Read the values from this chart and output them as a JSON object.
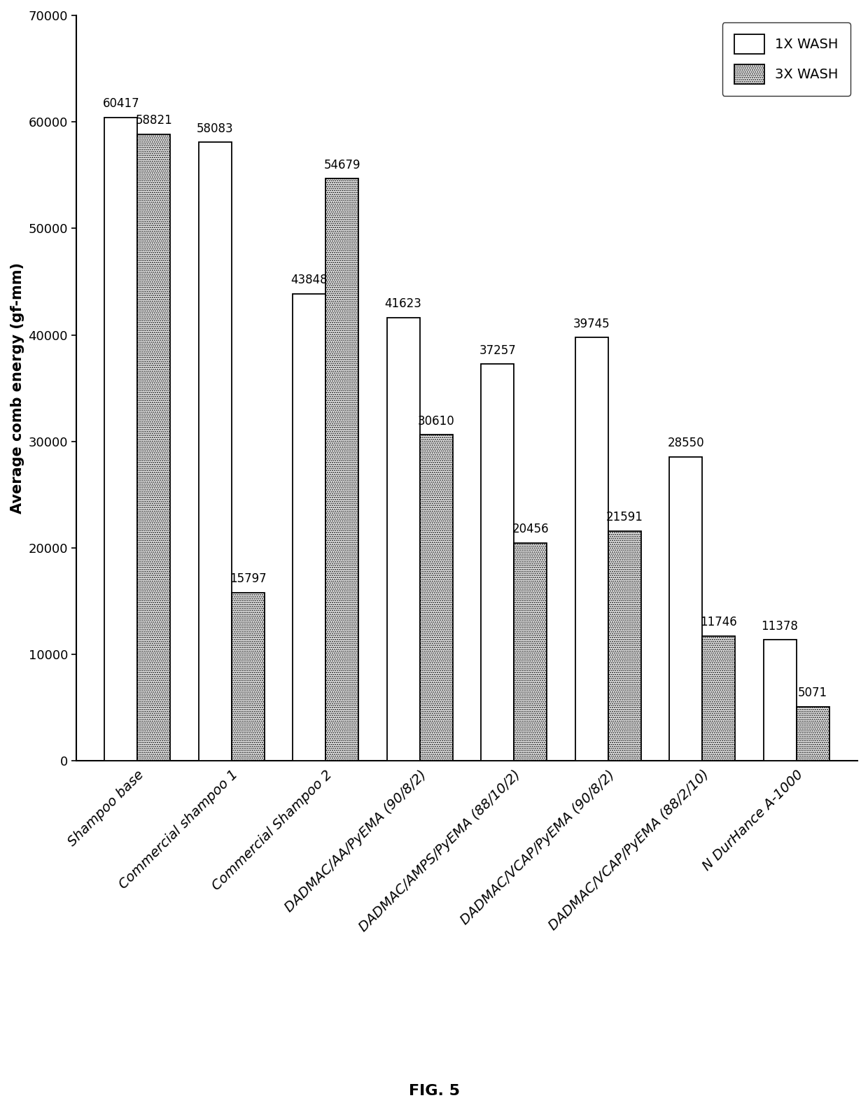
{
  "categories": [
    "Shampoo base",
    "Commercial shampoo 1",
    "Commercial Shampoo 2",
    "DADMAC/AA/PyEMA (90/8/2)",
    "DADMAC/AMPS/PyEMA (88/10/2)",
    "DADMAC/VCAP/PyEMA (90/8/2)",
    "DADMAC/VCAP/PyEMA (88/2/10)",
    "N DurHance A-1000"
  ],
  "values_1x": [
    60417,
    58083,
    43848,
    41623,
    37257,
    39745,
    28550,
    11378
  ],
  "values_3x": [
    58821,
    15797,
    54679,
    30610,
    20456,
    21591,
    11746,
    5071
  ],
  "bar_color_1x": "#ffffff",
  "bar_color_3x": "#c8c8c8",
  "bar_edgecolor": "#000000",
  "ylabel": "Average comb energy (gf-mm)",
  "ylim": [
    0,
    70000
  ],
  "yticks": [
    0,
    10000,
    20000,
    30000,
    40000,
    50000,
    60000,
    70000
  ],
  "legend_1x": "1X WASH",
  "legend_3x": "3X WASH",
  "fig_label": "FIG. 5",
  "background_color": "#ffffff",
  "bar_width": 0.35,
  "label_fontsize": 14,
  "tick_fontsize": 13,
  "annot_fontsize": 12,
  "legend_fontsize": 14,
  "ylabel_fontsize": 15
}
